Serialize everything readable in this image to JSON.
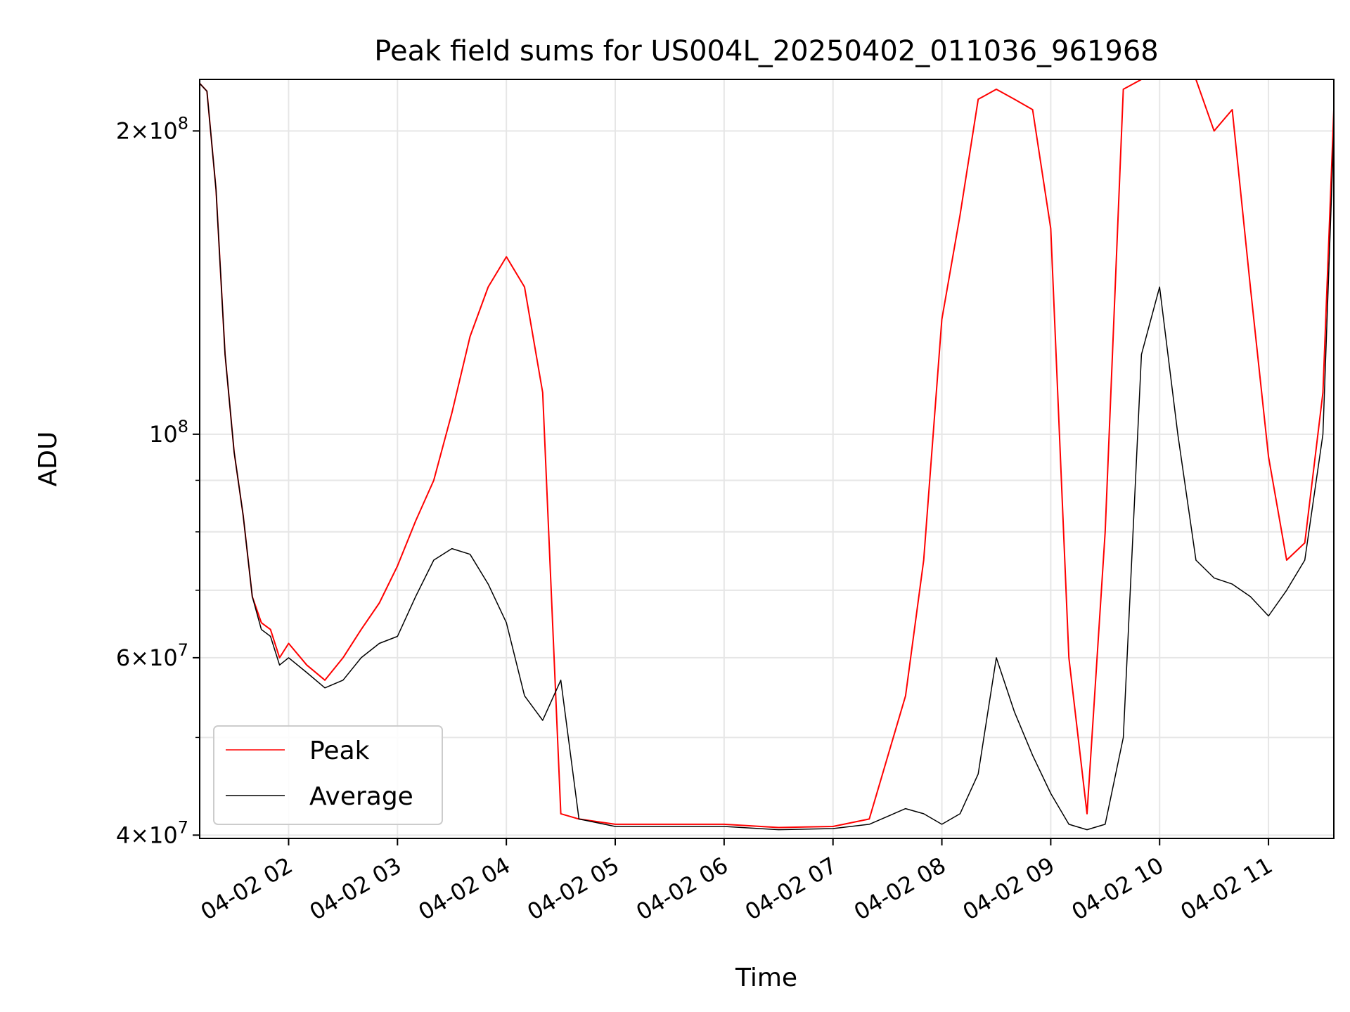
{
  "chart_data": {
    "type": "line",
    "title": "Peak field sums for US004L_20250402_011036_961968",
    "xlabel": "Time",
    "ylabel": "ADU",
    "yscale": "log",
    "xlim": [
      "2025-04-02 01:11",
      "2025-04-02 11:36"
    ],
    "ylim": [
      39700000,
      225000000
    ],
    "grid": true,
    "legend_position": "lower-left",
    "x_ticks": [
      {
        "value": "2025-04-02 02:00",
        "label": "04-02 02"
      },
      {
        "value": "2025-04-02 03:00",
        "label": "04-02 03"
      },
      {
        "value": "2025-04-02 04:00",
        "label": "04-02 04"
      },
      {
        "value": "2025-04-02 05:00",
        "label": "04-02 05"
      },
      {
        "value": "2025-04-02 06:00",
        "label": "04-02 06"
      },
      {
        "value": "2025-04-02 07:00",
        "label": "04-02 07"
      },
      {
        "value": "2025-04-02 08:00",
        "label": "04-02 08"
      },
      {
        "value": "2025-04-02 09:00",
        "label": "04-02 09"
      },
      {
        "value": "2025-04-02 10:00",
        "label": "04-02 10"
      },
      {
        "value": "2025-04-02 11:00",
        "label": "04-02 11"
      }
    ],
    "y_ticks": [
      {
        "value": 40000000,
        "mantissa": "4",
        "exponent": "7"
      },
      {
        "value": 60000000,
        "mantissa": "6",
        "exponent": "7"
      },
      {
        "value": 100000000,
        "mantissa": "",
        "exponent": "8"
      },
      {
        "value": 200000000,
        "mantissa": "2",
        "exponent": "8"
      }
    ],
    "y_minor_ticks": [
      50000000,
      70000000,
      80000000,
      90000000
    ],
    "series": [
      {
        "name": "Peak",
        "color": "#ff0000",
        "x": [
          "2025-04-02 01:11",
          "2025-04-02 01:15",
          "2025-04-02 01:20",
          "2025-04-02 01:25",
          "2025-04-02 01:30",
          "2025-04-02 01:35",
          "2025-04-02 01:40",
          "2025-04-02 01:45",
          "2025-04-02 01:50",
          "2025-04-02 01:55",
          "2025-04-02 02:00",
          "2025-04-02 02:10",
          "2025-04-02 02:20",
          "2025-04-02 02:30",
          "2025-04-02 02:40",
          "2025-04-02 02:50",
          "2025-04-02 03:00",
          "2025-04-02 03:10",
          "2025-04-02 03:20",
          "2025-04-02 03:30",
          "2025-04-02 03:40",
          "2025-04-02 03:50",
          "2025-04-02 04:00",
          "2025-04-02 04:10",
          "2025-04-02 04:20",
          "2025-04-02 04:30",
          "2025-04-02 04:40",
          "2025-04-02 05:00",
          "2025-04-02 05:30",
          "2025-04-02 06:00",
          "2025-04-02 06:30",
          "2025-04-02 07:00",
          "2025-04-02 07:20",
          "2025-04-02 07:40",
          "2025-04-02 07:50",
          "2025-04-02 08:00",
          "2025-04-02 08:10",
          "2025-04-02 08:20",
          "2025-04-02 08:30",
          "2025-04-02 08:40",
          "2025-04-02 08:50",
          "2025-04-02 09:00",
          "2025-04-02 09:10",
          "2025-04-02 09:20",
          "2025-04-02 09:30",
          "2025-04-02 09:40",
          "2025-04-02 09:50",
          "2025-04-02 10:00",
          "2025-04-02 10:10",
          "2025-04-02 10:20",
          "2025-04-02 10:30",
          "2025-04-02 10:40",
          "2025-04-02 10:50",
          "2025-04-02 11:00",
          "2025-04-02 11:10",
          "2025-04-02 11:20",
          "2025-04-02 11:30",
          "2025-04-02 11:36"
        ],
        "y": [
          223000000,
          219000000,
          175000000,
          120000000,
          96000000,
          83000000,
          69000000,
          65000000,
          64000000,
          60000000,
          62000000,
          59000000,
          57000000,
          60000000,
          64000000,
          68000000,
          74000000,
          82000000,
          90000000,
          105000000,
          125000000,
          140000000,
          150000000,
          140000000,
          110000000,
          42000000,
          41500000,
          41000000,
          41000000,
          41000000,
          40700000,
          40800000,
          41500000,
          55000000,
          75000000,
          130000000,
          165000000,
          215000000,
          220000000,
          215000000,
          210000000,
          160000000,
          60000000,
          42000000,
          80000000,
          220000000,
          225000000,
          225000000,
          225000000,
          225000000,
          200000000,
          210000000,
          140000000,
          95000000,
          75000000,
          78000000,
          110000000,
          210000000
        ]
      },
      {
        "name": "Average",
        "color": "#000000",
        "x": [
          "2025-04-02 01:11",
          "2025-04-02 01:15",
          "2025-04-02 01:20",
          "2025-04-02 01:25",
          "2025-04-02 01:30",
          "2025-04-02 01:35",
          "2025-04-02 01:40",
          "2025-04-02 01:45",
          "2025-04-02 01:50",
          "2025-04-02 01:55",
          "2025-04-02 02:00",
          "2025-04-02 02:10",
          "2025-04-02 02:20",
          "2025-04-02 02:30",
          "2025-04-02 02:40",
          "2025-04-02 02:50",
          "2025-04-02 03:00",
          "2025-04-02 03:10",
          "2025-04-02 03:20",
          "2025-04-02 03:30",
          "2025-04-02 03:40",
          "2025-04-02 03:50",
          "2025-04-02 04:00",
          "2025-04-02 04:10",
          "2025-04-02 04:20",
          "2025-04-02 04:30",
          "2025-04-02 04:40",
          "2025-04-02 05:00",
          "2025-04-02 05:30",
          "2025-04-02 06:00",
          "2025-04-02 06:30",
          "2025-04-02 07:00",
          "2025-04-02 07:20",
          "2025-04-02 07:40",
          "2025-04-02 07:50",
          "2025-04-02 08:00",
          "2025-04-02 08:10",
          "2025-04-02 08:20",
          "2025-04-02 08:30",
          "2025-04-02 08:40",
          "2025-04-02 08:50",
          "2025-04-02 09:00",
          "2025-04-02 09:10",
          "2025-04-02 09:20",
          "2025-04-02 09:30",
          "2025-04-02 09:40",
          "2025-04-02 09:50",
          "2025-04-02 10:00",
          "2025-04-02 10:10",
          "2025-04-02 10:20",
          "2025-04-02 10:30",
          "2025-04-02 10:40",
          "2025-04-02 10:50",
          "2025-04-02 11:00",
          "2025-04-02 11:10",
          "2025-04-02 11:20",
          "2025-04-02 11:30",
          "2025-04-02 11:36"
        ],
        "y": [
          223000000,
          219000000,
          175000000,
          120000000,
          96000000,
          83000000,
          69000000,
          64000000,
          63000000,
          59000000,
          60000000,
          58000000,
          56000000,
          57000000,
          60000000,
          62000000,
          63000000,
          69000000,
          75000000,
          77000000,
          76000000,
          71000000,
          65000000,
          55000000,
          52000000,
          57000000,
          41500000,
          40800000,
          40800000,
          40800000,
          40500000,
          40600000,
          41000000,
          42500000,
          42000000,
          41000000,
          42000000,
          46000000,
          60000000,
          53000000,
          48000000,
          44000000,
          41000000,
          40500000,
          41000000,
          50000000,
          120000000,
          140000000,
          100000000,
          75000000,
          72000000,
          71000000,
          69000000,
          66000000,
          70000000,
          75000000,
          100000000,
          200000000
        ]
      }
    ]
  }
}
